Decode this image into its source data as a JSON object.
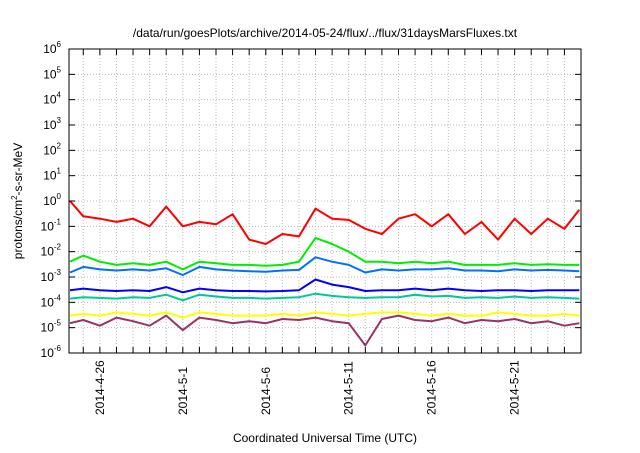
{
  "chart_data": {
    "type": "line",
    "title": "/data/run/goesPlots/archive/2014-05-24/flux/../flux/31daysMarsFluxes.txt",
    "xlabel": "Coordinated Universal Time (UTC)",
    "ylabel_base": "protons/cm",
    "ylabel_sup": "2",
    "ylabel_rest": "-s-sr-MeV",
    "x_units": "days since 2014-04-24 00:00 UTC",
    "xlim": [
      0.14,
      31.0
    ],
    "yscale": "log",
    "ylim": [
      1e-06,
      1000000.0
    ],
    "grid": true,
    "xticks": [
      {
        "day": 2,
        "label": "2014-4-26"
      },
      {
        "day": 7,
        "label": "2014-5-1"
      },
      {
        "day": 12,
        "label": "2014-5-6"
      },
      {
        "day": 17,
        "label": "2014-5-11"
      },
      {
        "day": 22,
        "label": "2014-5-16"
      },
      {
        "day": 27,
        "label": "2014-5-21"
      }
    ],
    "yticks": [
      {
        "exp": "6",
        "base": "10"
      },
      {
        "exp": "5",
        "base": "10"
      },
      {
        "exp": "4",
        "base": "10"
      },
      {
        "exp": "3",
        "base": "10"
      },
      {
        "exp": "2",
        "base": "10"
      },
      {
        "exp": "1",
        "base": "10"
      },
      {
        "exp": "0",
        "base": "10"
      },
      {
        "exp": "-1",
        "base": "10"
      },
      {
        "exp": "-2",
        "base": "10"
      },
      {
        "exp": "-3",
        "base": "10"
      },
      {
        "exp": "-4",
        "base": "10"
      },
      {
        "exp": "-5",
        "base": "10"
      },
      {
        "exp": "-6",
        "base": "10"
      }
    ],
    "x": [
      0.2,
      1,
      2,
      3,
      4,
      5,
      6,
      7,
      8,
      9,
      10,
      11,
      12,
      13,
      14,
      15,
      16,
      17,
      18,
      19,
      20,
      21,
      22,
      23,
      24,
      25,
      26,
      27,
      28,
      29,
      30,
      30.9
    ],
    "series": [
      {
        "name": "red",
        "color": "#ff0000",
        "values": [
          1.0,
          0.25,
          0.2,
          0.15,
          0.2,
          0.1,
          0.6,
          0.1,
          0.15,
          0.12,
          0.3,
          0.03,
          0.02,
          0.05,
          0.04,
          0.5,
          0.2,
          0.18,
          0.08,
          0.05,
          0.2,
          0.3,
          0.1,
          0.3,
          0.05,
          0.15,
          0.03,
          0.2,
          0.05,
          0.2,
          0.08,
          0.45
        ]
      },
      {
        "name": "green",
        "color": "#00ee00",
        "values": [
          0.004,
          0.007,
          0.004,
          0.003,
          0.0035,
          0.003,
          0.004,
          0.002,
          0.004,
          0.0035,
          0.003,
          0.003,
          0.0028,
          0.003,
          0.004,
          0.035,
          0.02,
          0.01,
          0.004,
          0.004,
          0.0035,
          0.004,
          0.0035,
          0.004,
          0.003,
          0.003,
          0.003,
          0.0035,
          0.003,
          0.0032,
          0.003,
          0.003
        ]
      },
      {
        "name": "light-blue",
        "color": "#0070ff",
        "values": [
          0.0015,
          0.0025,
          0.002,
          0.0018,
          0.002,
          0.0018,
          0.0022,
          0.0012,
          0.0025,
          0.002,
          0.0018,
          0.0017,
          0.0016,
          0.0018,
          0.0019,
          0.006,
          0.004,
          0.003,
          0.0015,
          0.002,
          0.0018,
          0.002,
          0.002,
          0.0022,
          0.0018,
          0.0018,
          0.0017,
          0.002,
          0.0018,
          0.0019,
          0.0018,
          0.0017
        ]
      },
      {
        "name": "blue",
        "color": "#0000ff",
        "values": [
          0.0003,
          0.00035,
          0.0003,
          0.00028,
          0.0003,
          0.00028,
          0.0004,
          0.00025,
          0.00035,
          0.0003,
          0.00028,
          0.00028,
          0.00027,
          0.00028,
          0.0003,
          0.0008,
          0.0005,
          0.0004,
          0.00028,
          0.0003,
          0.0003,
          0.00035,
          0.0003,
          0.00035,
          0.0003,
          0.00028,
          0.0003,
          0.0003,
          0.00028,
          0.0003,
          0.0003,
          0.0003
        ]
      },
      {
        "name": "teal",
        "color": "#00c896",
        "values": [
          0.00014,
          0.00016,
          0.00015,
          0.00014,
          0.00016,
          0.00015,
          0.0002,
          0.00012,
          0.0002,
          0.00017,
          0.00015,
          0.00015,
          0.00014,
          0.00015,
          0.00016,
          0.00022,
          0.00018,
          0.00016,
          0.00015,
          0.00016,
          0.00016,
          0.0002,
          0.00017,
          0.00018,
          0.00015,
          0.00016,
          0.00015,
          0.00017,
          0.00015,
          0.00016,
          0.00015,
          0.00014
        ]
      },
      {
        "name": "yellow",
        "color": "#ffff00",
        "values": [
          3e-05,
          3.5e-05,
          3e-05,
          4e-05,
          3.5e-05,
          3e-05,
          4e-05,
          2.5e-05,
          4e-05,
          3.5e-05,
          3e-05,
          3e-05,
          3e-05,
          3.5e-05,
          3e-05,
          4e-05,
          3.5e-05,
          3e-05,
          3.5e-05,
          4e-05,
          4e-05,
          3.5e-05,
          3e-05,
          3.5e-05,
          3e-05,
          3e-05,
          4e-05,
          3.5e-05,
          3e-05,
          3e-05,
          3.5e-05,
          3e-05
        ]
      },
      {
        "name": "purple",
        "color": "#993366",
        "values": [
          1.5e-05,
          2e-05,
          1.2e-05,
          2.5e-05,
          1.8e-05,
          1.2e-05,
          3e-05,
          8e-06,
          2.5e-05,
          2e-05,
          1.5e-05,
          1.8e-05,
          1.5e-05,
          2.2e-05,
          2e-05,
          2.5e-05,
          1.8e-05,
          1.5e-05,
          2e-06,
          2.2e-05,
          3e-05,
          2e-05,
          1.8e-05,
          2.5e-05,
          1.5e-05,
          2e-05,
          1.8e-05,
          2.2e-05,
          1.5e-05,
          1.8e-05,
          1.2e-05,
          1.5e-05
        ]
      }
    ]
  }
}
